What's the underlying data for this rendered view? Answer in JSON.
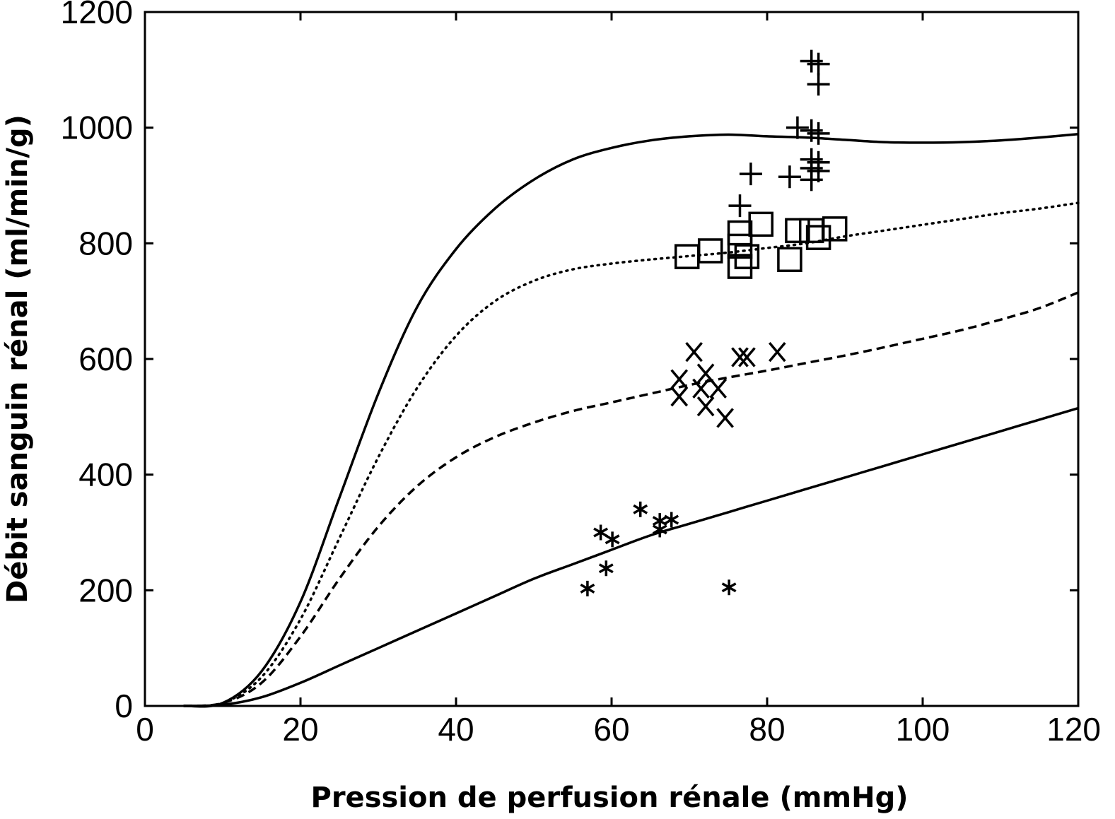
{
  "chart_data": {
    "type": "scatter",
    "xlabel": "Pression de perfusion rénale (mmHg)",
    "ylabel": "Débit sanguin rénal (ml/min/g)",
    "xlim": [
      0,
      120
    ],
    "ylim": [
      0,
      1200
    ],
    "x_ticks": [
      "0",
      "20",
      "40",
      "60",
      "80",
      "100",
      "120"
    ],
    "y_ticks": [
      "0",
      "200",
      "400",
      "600",
      "800",
      "1000",
      "1200"
    ],
    "grid": false,
    "legend": "none",
    "curves": [
      {
        "style": "solid",
        "points": [
          [
            5,
            0
          ],
          [
            10,
            5
          ],
          [
            15,
            60
          ],
          [
            20,
            180
          ],
          [
            25,
            360
          ],
          [
            30,
            540
          ],
          [
            35,
            690
          ],
          [
            40,
            790
          ],
          [
            45,
            860
          ],
          [
            50,
            910
          ],
          [
            55,
            945
          ],
          [
            60,
            965
          ],
          [
            65,
            978
          ],
          [
            70,
            985
          ],
          [
            75,
            988
          ],
          [
            80,
            985
          ],
          [
            85,
            983
          ],
          [
            90,
            979
          ],
          [
            95,
            975
          ],
          [
            100,
            974
          ],
          [
            105,
            975
          ],
          [
            110,
            978
          ],
          [
            115,
            983
          ],
          [
            120,
            989
          ]
        ]
      },
      {
        "style": "dotted",
        "points": [
          [
            5,
            0
          ],
          [
            10,
            5
          ],
          [
            15,
            50
          ],
          [
            20,
            150
          ],
          [
            25,
            290
          ],
          [
            30,
            430
          ],
          [
            35,
            550
          ],
          [
            40,
            640
          ],
          [
            45,
            700
          ],
          [
            50,
            735
          ],
          [
            55,
            755
          ],
          [
            60,
            765
          ],
          [
            65,
            772
          ],
          [
            70,
            778
          ],
          [
            75,
            784
          ],
          [
            80,
            792
          ],
          [
            85,
            800
          ],
          [
            90,
            812
          ],
          [
            95,
            822
          ],
          [
            100,
            832
          ],
          [
            105,
            842
          ],
          [
            110,
            852
          ],
          [
            115,
            860
          ],
          [
            120,
            870
          ]
        ]
      },
      {
        "style": "dashed",
        "points": [
          [
            5,
            0
          ],
          [
            10,
            5
          ],
          [
            15,
            40
          ],
          [
            20,
            120
          ],
          [
            25,
            220
          ],
          [
            30,
            310
          ],
          [
            35,
            380
          ],
          [
            40,
            430
          ],
          [
            45,
            465
          ],
          [
            50,
            490
          ],
          [
            55,
            510
          ],
          [
            60,
            525
          ],
          [
            65,
            540
          ],
          [
            70,
            555
          ],
          [
            75,
            568
          ],
          [
            80,
            580
          ],
          [
            85,
            593
          ],
          [
            90,
            606
          ],
          [
            95,
            620
          ],
          [
            100,
            635
          ],
          [
            105,
            650
          ],
          [
            110,
            668
          ],
          [
            115,
            688
          ],
          [
            120,
            715
          ]
        ]
      },
      {
        "style": "solid",
        "points": [
          [
            5,
            0
          ],
          [
            10,
            2
          ],
          [
            15,
            15
          ],
          [
            20,
            40
          ],
          [
            25,
            70
          ],
          [
            30,
            100
          ],
          [
            35,
            130
          ],
          [
            40,
            160
          ],
          [
            45,
            190
          ],
          [
            50,
            220
          ],
          [
            55,
            245
          ],
          [
            60,
            270
          ],
          [
            65,
            295
          ],
          [
            70,
            315
          ],
          [
            75,
            335
          ],
          [
            80,
            355
          ],
          [
            85,
            375
          ],
          [
            90,
            395
          ],
          [
            95,
            415
          ],
          [
            100,
            435
          ],
          [
            105,
            455
          ],
          [
            110,
            475
          ],
          [
            115,
            495
          ],
          [
            120,
            515
          ]
        ]
      }
    ],
    "series": [
      {
        "marker": "plus",
        "points": [
          [
            85.7,
            1115
          ],
          [
            86.6,
            1110
          ],
          [
            86.6,
            1075
          ],
          [
            83.9,
            1000
          ],
          [
            85.7,
            995
          ],
          [
            86.6,
            990
          ],
          [
            85.7,
            945
          ],
          [
            86.6,
            940
          ],
          [
            85.7,
            930
          ],
          [
            86.6,
            925
          ],
          [
            85.7,
            910
          ],
          [
            77.9,
            920
          ],
          [
            82.9,
            915
          ],
          [
            76.5,
            865
          ]
        ]
      },
      {
        "marker": "square",
        "points": [
          [
            69.7,
            777
          ],
          [
            72.7,
            787
          ],
          [
            76.5,
            818
          ],
          [
            79.2,
            833
          ],
          [
            76.5,
            795
          ],
          [
            77.4,
            777
          ],
          [
            76.5,
            760
          ],
          [
            83.9,
            822
          ],
          [
            85.7,
            822
          ],
          [
            88.7,
            825
          ],
          [
            86.6,
            810
          ],
          [
            82.9,
            772
          ]
        ]
      },
      {
        "marker": "x",
        "points": [
          [
            70.6,
            612
          ],
          [
            76.5,
            603
          ],
          [
            77.4,
            603
          ],
          [
            81.3,
            612
          ],
          [
            68.7,
            565
          ],
          [
            72.1,
            575
          ],
          [
            71.5,
            549
          ],
          [
            73.7,
            549
          ],
          [
            68.7,
            535
          ],
          [
            72.1,
            518
          ],
          [
            74.6,
            498
          ]
        ]
      },
      {
        "marker": "asterisk",
        "points": [
          [
            58.6,
            300
          ],
          [
            60.1,
            288
          ],
          [
            63.7,
            340
          ],
          [
            66.2,
            320
          ],
          [
            67.7,
            322
          ],
          [
            66.2,
            305
          ],
          [
            59.3,
            238
          ],
          [
            56.9,
            203
          ],
          [
            75.1,
            205
          ]
        ]
      }
    ]
  }
}
